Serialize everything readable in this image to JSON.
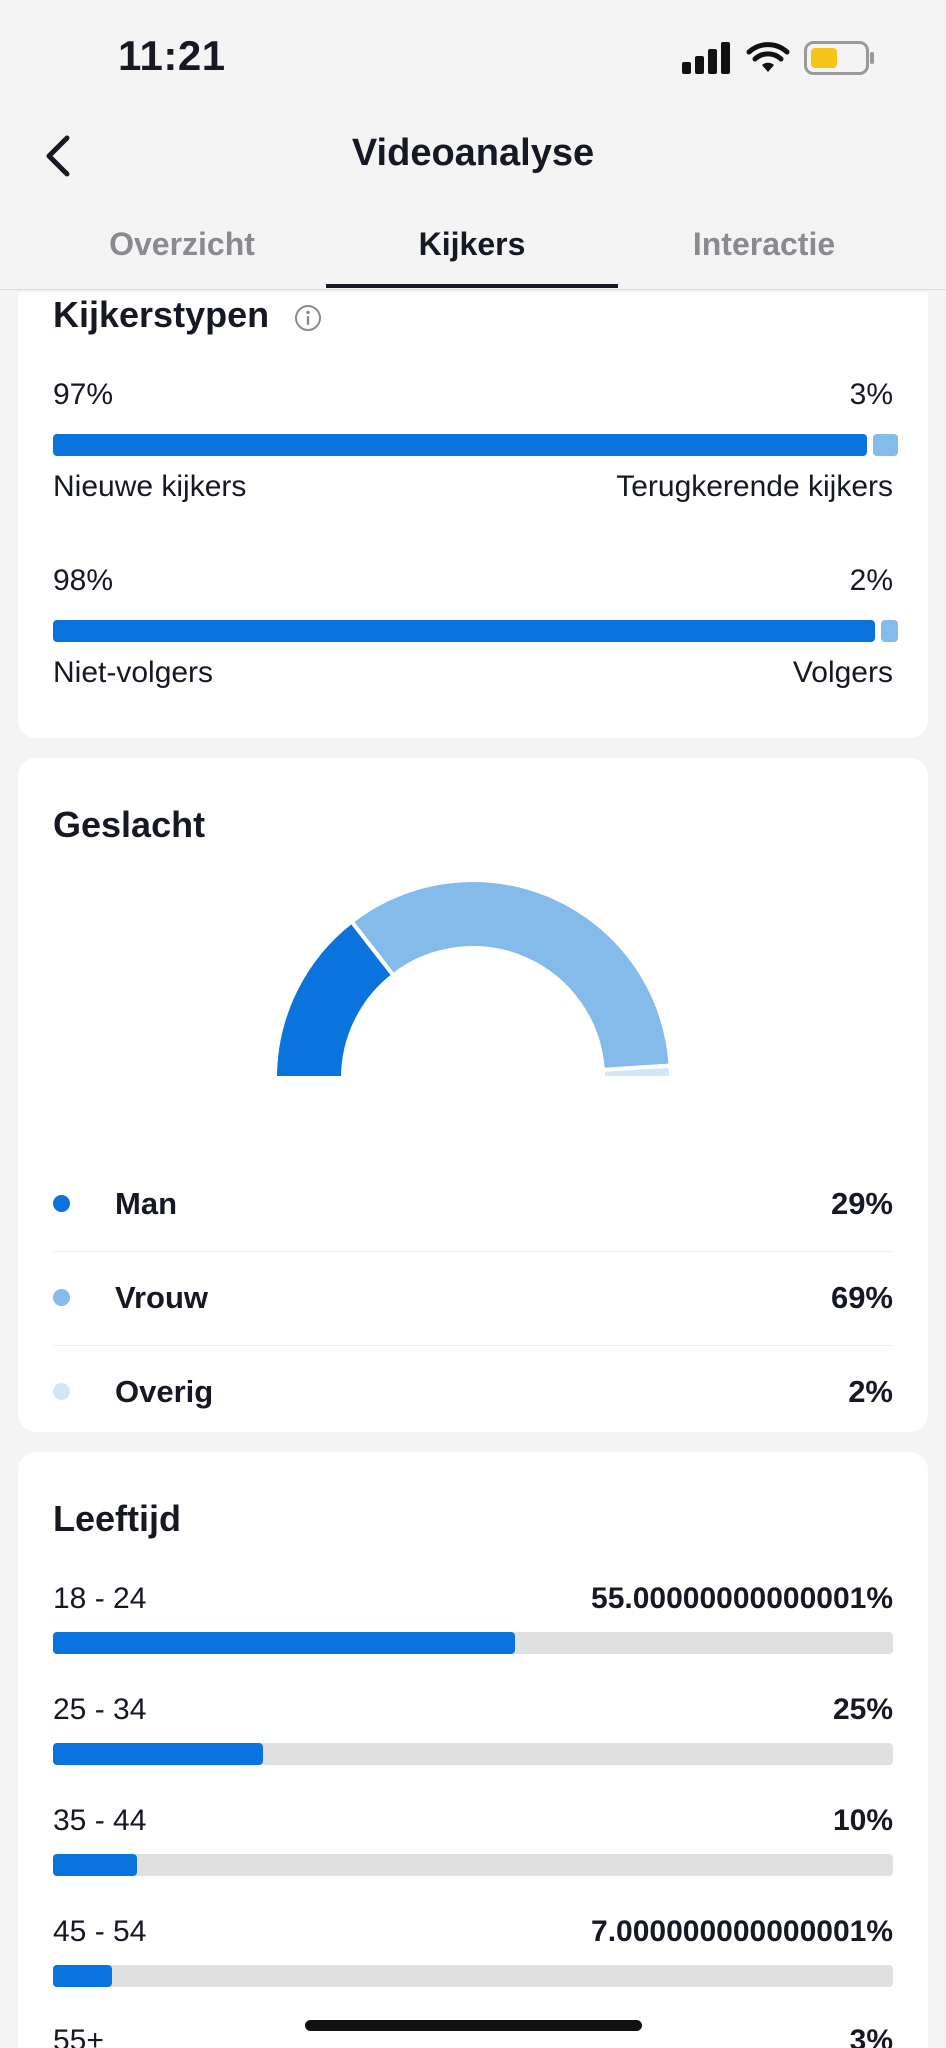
{
  "status_bar": {
    "time": "11:21",
    "battery_color": "#f5c518"
  },
  "header": {
    "title": "Videoanalyse",
    "back_icon": "chevron-left-icon"
  },
  "tabs": [
    {
      "label": "Overzicht",
      "active": false
    },
    {
      "label": "Kijkers",
      "active": true
    },
    {
      "label": "Interactie",
      "active": false
    }
  ],
  "viewer_types": {
    "title": "Kijkerstypen",
    "rows": [
      {
        "left_pct": "97%",
        "right_pct": "3%",
        "left_label": "Nieuwe kijkers",
        "right_label": "Terugkerende kijkers",
        "left_value": 97
      },
      {
        "left_pct": "98%",
        "right_pct": "2%",
        "left_label": "Niet-volgers",
        "right_label": "Volgers",
        "left_value": 98
      }
    ]
  },
  "gender": {
    "title": "Geslacht",
    "items": [
      {
        "label": "Man",
        "value": "29%",
        "color": "#0a73de"
      },
      {
        "label": "Vrouw",
        "value": "69%",
        "color": "#84bbeb"
      },
      {
        "label": "Overig",
        "value": "2%",
        "color": "#d3e6f8"
      }
    ]
  },
  "chart_data": {
    "type": "pie",
    "title": "Geslacht",
    "categories": [
      "Man",
      "Vrouw",
      "Overig"
    ],
    "values": [
      29,
      69,
      2
    ],
    "colors": [
      "#0a73de",
      "#84bbeb",
      "#d3e6f8"
    ]
  },
  "age": {
    "title": "Leeftijd",
    "rows": [
      {
        "label": "18 - 24",
        "value": "55.00000000000001%",
        "fraction": 0.55
      },
      {
        "label": "25 - 34",
        "value": "25%",
        "fraction": 0.25
      },
      {
        "label": "35 - 44",
        "value": "10%",
        "fraction": 0.1
      },
      {
        "label": "45 - 54",
        "value": "7.000000000000001%",
        "fraction": 0.07
      },
      {
        "label": "55+",
        "value": "3%",
        "fraction": 0.03
      }
    ]
  },
  "colors": {
    "accent": "#0a73de",
    "accent_light": "#84bbeb",
    "track": "#e0e0e0"
  }
}
